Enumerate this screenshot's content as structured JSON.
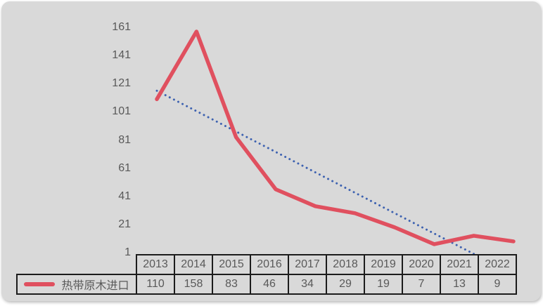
{
  "panel": {
    "background": "#d9d9d9"
  },
  "chart_data": {
    "type": "line",
    "title": "",
    "xlabel": "",
    "ylabel": "",
    "categories": [
      "2013",
      "2014",
      "2015",
      "2016",
      "2017",
      "2018",
      "2019",
      "2020",
      "2021",
      "2022"
    ],
    "series": [
      {
        "name": "热带原木进口",
        "values": [
          110,
          158,
          83,
          46,
          34,
          29,
          19,
          7,
          13,
          9
        ],
        "color": "#e0505f",
        "style": "solid"
      }
    ],
    "trendline": {
      "for_series": "热带原木进口",
      "type": "linear",
      "style": "dotted",
      "color": "#3e62b0"
    },
    "yticks": [
      161,
      141,
      121,
      101,
      81,
      61,
      41,
      21,
      1
    ],
    "ylim": [
      1,
      161
    ],
    "grid": false,
    "legend_position": "bottom-left",
    "data_table": true
  },
  "legend": {
    "label": "热带原木进口"
  }
}
